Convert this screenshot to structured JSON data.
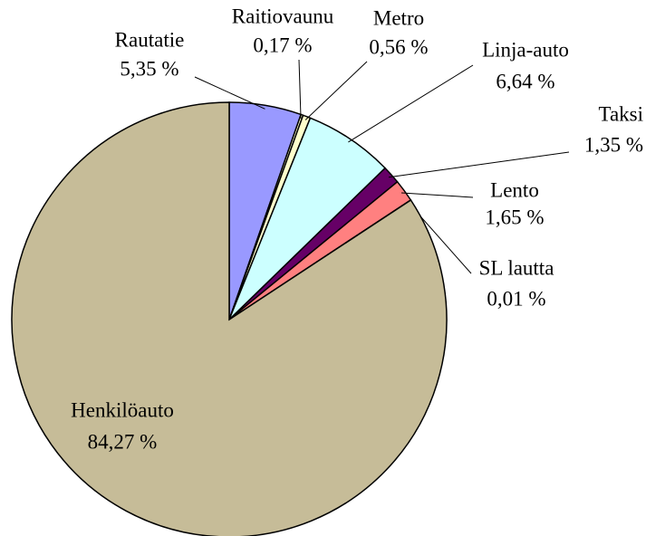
{
  "chart_data": {
    "type": "pie",
    "categories": [
      "Rautatie",
      "Raitiovaunu",
      "Metro",
      "Linja-auto",
      "Taksi",
      "Lento",
      "SL lautta",
      "Henkilöauto"
    ],
    "values": [
      5.35,
      0.17,
      0.56,
      6.64,
      1.35,
      1.65,
      0.01,
      84.27
    ],
    "value_labels": [
      "5,35 %",
      "0,17 %",
      "0,56 %",
      "6,64 %",
      "1,35 %",
      "1,65 %",
      "0,01 %",
      "84,27 %"
    ],
    "colors": [
      "#9999ff",
      "#ffffcc",
      "#ffffcc",
      "#ccffff",
      "#660066",
      "#ff8080",
      "#0066cc",
      "#c6bc98"
    ]
  }
}
